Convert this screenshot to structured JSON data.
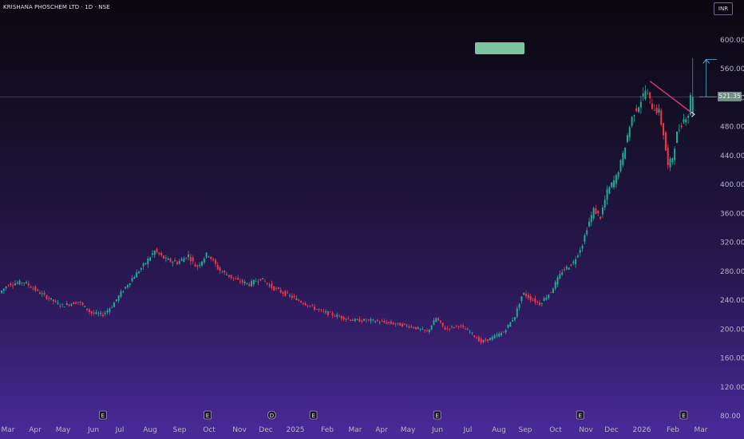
{
  "header": {
    "title": "KRISHANA PHOSCHEM LTD · 1D · NSE",
    "currency": "INR"
  },
  "price_scale": {
    "last_price_label": "521.35"
  },
  "colors": {
    "up_candle": "#22ab94",
    "down_candle": "#f23645",
    "trendline": "#e33a7a",
    "measure_line": "#5fa8c8",
    "target_box": "#7fc4a2",
    "price_tag": "#6f8f84",
    "event_marker": "#1a1626"
  },
  "chart_data": {
    "type": "candlestick",
    "title": "KRISHANA PHOSCHEM LTD · 1D · NSE",
    "currency": "INR",
    "ylim": [
      80,
      620
    ],
    "y_ticks": [
      80,
      120,
      160,
      200,
      240,
      280,
      320,
      360,
      400,
      440,
      480,
      520,
      560,
      600
    ],
    "y_tick_labels": [
      "80.00",
      "120.00",
      "160.00",
      "200.00",
      "240.00",
      "280.00",
      "320.00",
      "360.00",
      "400.00",
      "440.00",
      "480.00",
      "520.00",
      "560.00",
      "600.00"
    ],
    "x_labels": [
      "Mar",
      "Apr",
      "May",
      "Jun",
      "Jul",
      "Aug",
      "Sep",
      "Oct",
      "Nov",
      "Dec",
      "2025",
      "Feb",
      "Mar",
      "Apr",
      "May",
      "Jun",
      "Jul",
      "Aug",
      "Sep",
      "Oct",
      "Nov",
      "Dec",
      "2026",
      "Feb",
      "Mar"
    ],
    "last_price": 521.35,
    "price_path": [
      {
        "d": 0,
        "p": 250
      },
      {
        "d": 8,
        "p": 262
      },
      {
        "d": 22,
        "p": 265
      },
      {
        "d": 38,
        "p": 248
      },
      {
        "d": 55,
        "p": 232
      },
      {
        "d": 70,
        "p": 238
      },
      {
        "d": 82,
        "p": 222
      },
      {
        "d": 92,
        "p": 220
      },
      {
        "d": 100,
        "p": 232
      },
      {
        "d": 108,
        "p": 250
      },
      {
        "d": 118,
        "p": 270
      },
      {
        "d": 128,
        "p": 288
      },
      {
        "d": 138,
        "p": 308
      },
      {
        "d": 148,
        "p": 296
      },
      {
        "d": 158,
        "p": 292
      },
      {
        "d": 168,
        "p": 302
      },
      {
        "d": 175,
        "p": 285
      },
      {
        "d": 185,
        "p": 305
      },
      {
        "d": 195,
        "p": 282
      },
      {
        "d": 210,
        "p": 268
      },
      {
        "d": 222,
        "p": 262
      },
      {
        "d": 232,
        "p": 270
      },
      {
        "d": 242,
        "p": 258
      },
      {
        "d": 255,
        "p": 248
      },
      {
        "d": 268,
        "p": 238
      },
      {
        "d": 285,
        "p": 225
      },
      {
        "d": 300,
        "p": 218
      },
      {
        "d": 315,
        "p": 212
      },
      {
        "d": 330,
        "p": 212
      },
      {
        "d": 348,
        "p": 208
      },
      {
        "d": 365,
        "p": 204
      },
      {
        "d": 380,
        "p": 196
      },
      {
        "d": 388,
        "p": 215
      },
      {
        "d": 396,
        "p": 200
      },
      {
        "d": 408,
        "p": 205
      },
      {
        "d": 418,
        "p": 196
      },
      {
        "d": 428,
        "p": 182
      },
      {
        "d": 438,
        "p": 188
      },
      {
        "d": 448,
        "p": 196
      },
      {
        "d": 458,
        "p": 218
      },
      {
        "d": 465,
        "p": 250
      },
      {
        "d": 472,
        "p": 242
      },
      {
        "d": 480,
        "p": 235
      },
      {
        "d": 490,
        "p": 252
      },
      {
        "d": 500,
        "p": 280
      },
      {
        "d": 510,
        "p": 292
      },
      {
        "d": 518,
        "p": 318
      },
      {
        "d": 522,
        "p": 340
      },
      {
        "d": 528,
        "p": 365
      },
      {
        "d": 534,
        "p": 355
      },
      {
        "d": 540,
        "p": 390
      },
      {
        "d": 548,
        "p": 410
      },
      {
        "d": 554,
        "p": 440
      },
      {
        "d": 558,
        "p": 468
      },
      {
        "d": 563,
        "p": 498
      },
      {
        "d": 568,
        "p": 510
      },
      {
        "d": 574,
        "p": 530
      },
      {
        "d": 580,
        "p": 508
      },
      {
        "d": 586,
        "p": 500
      },
      {
        "d": 590,
        "p": 470
      },
      {
        "d": 594,
        "p": 425
      },
      {
        "d": 598,
        "p": 438
      },
      {
        "d": 602,
        "p": 470
      },
      {
        "d": 607,
        "p": 488
      },
      {
        "d": 611,
        "p": 497
      },
      {
        "d": 613,
        "p": 498
      },
      {
        "d": 614,
        "p": 521.35
      }
    ],
    "trendline": {
      "x_days": [
        576,
        615
      ],
      "y_values": [
        543,
        497
      ]
    },
    "measure": {
      "x_days": [
        614,
        626
      ],
      "from": 521.35,
      "to": 573
    },
    "event_markers": [
      {
        "label": "E",
        "day": 90
      },
      {
        "label": "E",
        "day": 183
      },
      {
        "label": "D",
        "day": 240
      },
      {
        "label": "E",
        "day": 277
      },
      {
        "label": "E",
        "day": 387
      },
      {
        "label": "E",
        "day": 514
      },
      {
        "label": "E",
        "day": 606
      }
    ]
  }
}
